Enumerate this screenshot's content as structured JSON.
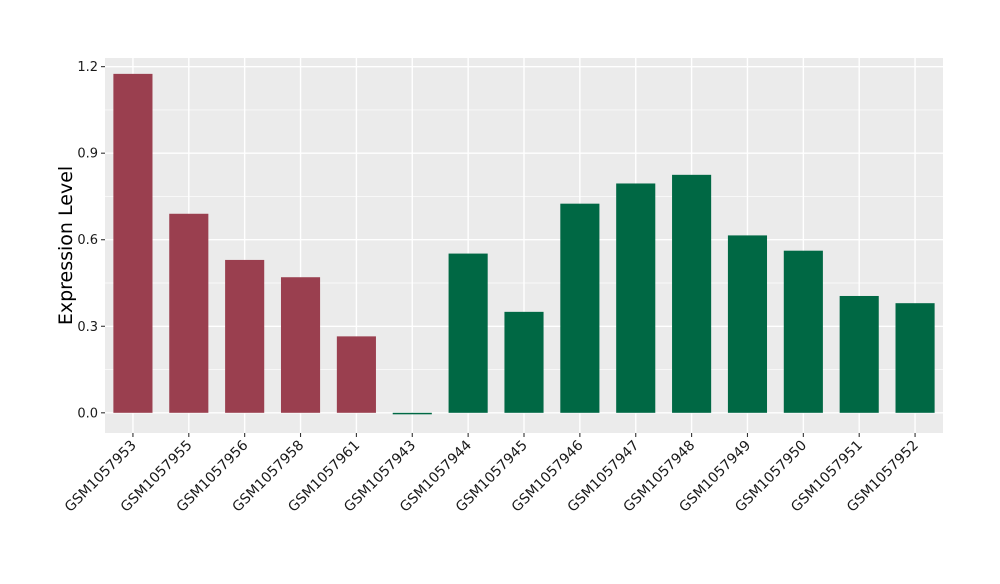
{
  "chart_data": {
    "type": "bar",
    "title": "",
    "xlabel": "",
    "ylabel": "Expression Level",
    "categories": [
      "GSM1057953",
      "GSM1057955",
      "GSM1057956",
      "GSM1057958",
      "GSM1057961",
      "GSM1057943",
      "GSM1057944",
      "GSM1057945",
      "GSM1057946",
      "GSM1057947",
      "GSM1057948",
      "GSM1057949",
      "GSM1057950",
      "GSM1057951",
      "GSM1057952"
    ],
    "values": [
      1.175,
      0.69,
      0.53,
      0.47,
      0.265,
      -0.005,
      0.552,
      0.35,
      0.725,
      0.795,
      0.825,
      0.615,
      0.562,
      0.405,
      0.38
    ],
    "group": [
      "a",
      "a",
      "a",
      "a",
      "a",
      "b",
      "b",
      "b",
      "b",
      "b",
      "b",
      "b",
      "b",
      "b",
      "b"
    ],
    "group_colors": {
      "a": "#9a3f4f",
      "b": "#006844"
    },
    "ylim": [
      -0.07,
      1.23
    ],
    "yticks": [
      0.0,
      0.3,
      0.6,
      0.9,
      1.2
    ],
    "ytick_labels": [
      "0.0",
      "0.3",
      "0.6",
      "0.9",
      "1.2"
    ],
    "grid": true,
    "legend": "none",
    "panel_color": "#ebebeb",
    "grid_color": "#ffffff"
  }
}
